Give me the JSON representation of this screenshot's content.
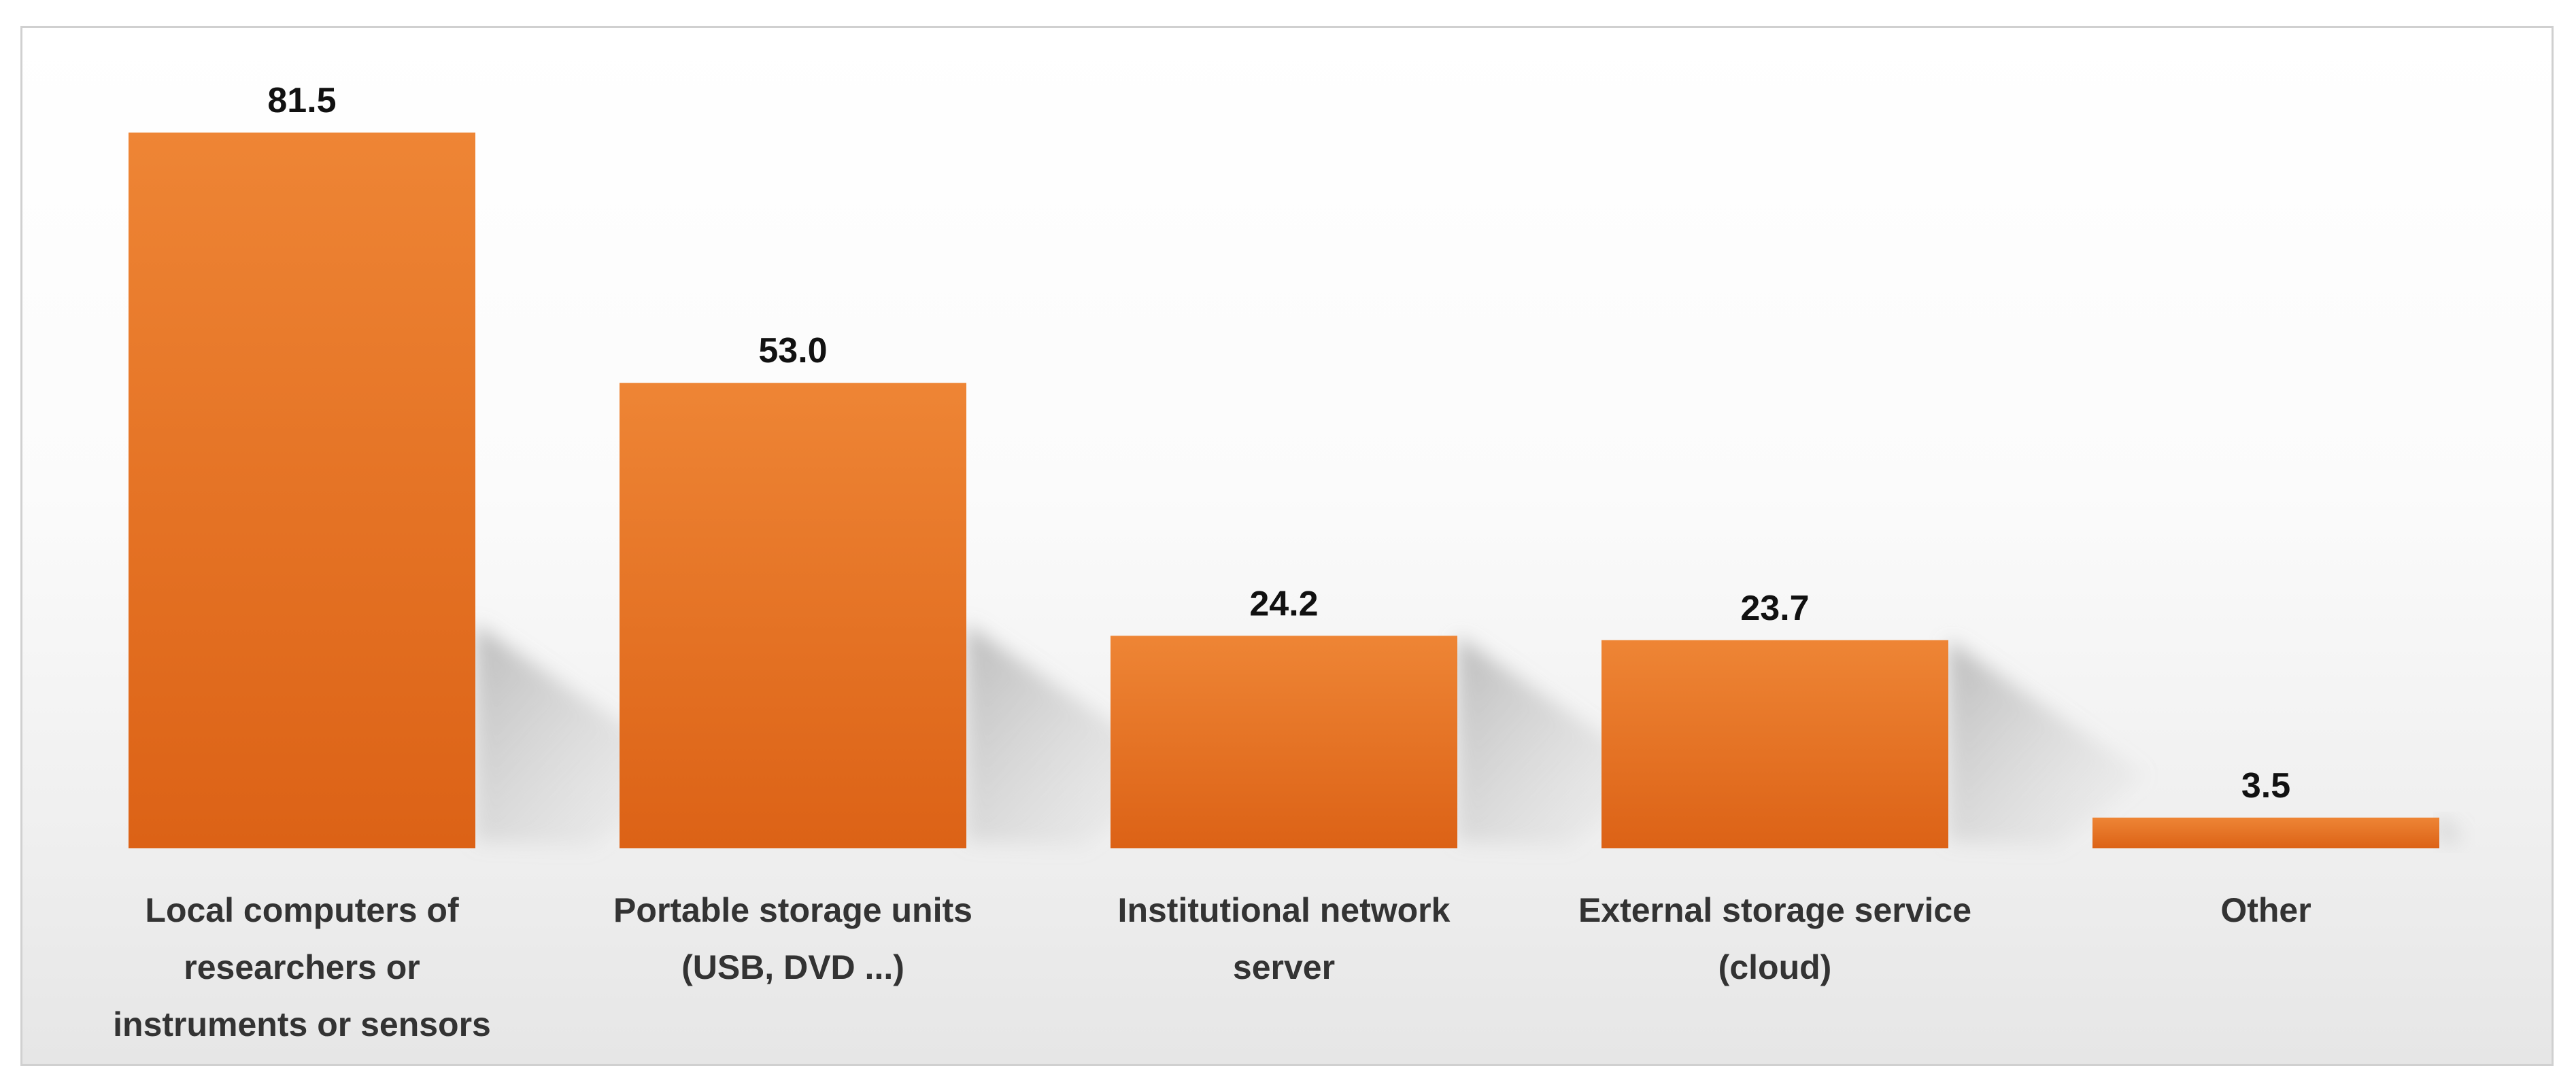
{
  "chart_data": {
    "type": "bar",
    "categories": [
      [
        "Local computers of",
        "researchers or",
        "instruments or sensors"
      ],
      [
        "Portable storage units",
        "(USB, DVD ...)"
      ],
      [
        "Institutional network",
        "server"
      ],
      [
        "External storage service",
        "(cloud)"
      ],
      [
        "Other"
      ]
    ],
    "values": [
      81.5,
      53.0,
      24.2,
      23.7,
      3.5
    ],
    "value_labels": [
      "81.5",
      "53.0",
      "24.2",
      "23.7",
      "3.5"
    ],
    "title": "",
    "xlabel": "",
    "ylabel": "",
    "ylim": [
      0,
      81.5
    ],
    "grid": false,
    "legend": "none",
    "colors": {
      "bar_top": "#EE8535",
      "bar_bottom": "#DC6216",
      "shadow": "#9a9a9a",
      "frame": "#d0d0d0"
    }
  }
}
